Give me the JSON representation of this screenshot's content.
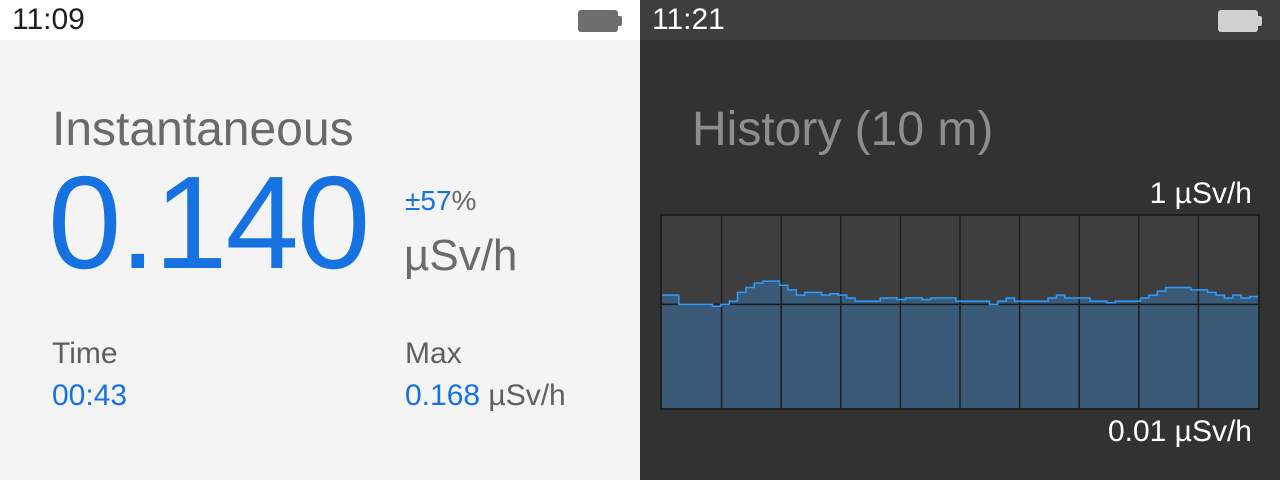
{
  "left_screen": {
    "status": {
      "time": "11:09",
      "battery_icon": "battery-icon"
    },
    "title": "Instantaneous",
    "value": "0.140",
    "uncertainty": "±57",
    "uncertainty_unit": "%",
    "unit": "µSv/h",
    "time_label": "Time",
    "time_value": "00:43",
    "max_label": "Max",
    "max_value": "0.168",
    "max_unit": "µSv/h"
  },
  "right_screen": {
    "status": {
      "time": "11:21",
      "battery_icon": "battery-icon"
    },
    "title": "History (10 m)",
    "scale_max": "1 µSv/h",
    "scale_min": "0.01 µSv/h"
  },
  "chart_data": {
    "type": "area",
    "title": "History (10 m)",
    "y_scale": "log",
    "ylim": [
      0.01,
      1
    ],
    "ylabel_top": "1 µSv/h",
    "ylabel_bottom": "0.01 µSv/h",
    "x_divisions": 10,
    "reference_line": 0.12,
    "values": [
      0.15,
      0.15,
      0.12,
      0.12,
      0.12,
      0.12,
      0.115,
      0.12,
      0.13,
      0.16,
      0.18,
      0.2,
      0.21,
      0.21,
      0.19,
      0.17,
      0.15,
      0.16,
      0.16,
      0.15,
      0.155,
      0.15,
      0.14,
      0.13,
      0.13,
      0.13,
      0.14,
      0.14,
      0.135,
      0.14,
      0.14,
      0.135,
      0.14,
      0.14,
      0.14,
      0.13,
      0.13,
      0.13,
      0.13,
      0.12,
      0.13,
      0.14,
      0.13,
      0.13,
      0.13,
      0.13,
      0.14,
      0.15,
      0.14,
      0.14,
      0.14,
      0.13,
      0.13,
      0.125,
      0.13,
      0.13,
      0.13,
      0.14,
      0.15,
      0.165,
      0.18,
      0.18,
      0.18,
      0.17,
      0.17,
      0.16,
      0.15,
      0.14,
      0.15,
      0.14,
      0.145
    ],
    "colors": {
      "line": "#2b9dff",
      "fill": "#3a5a78",
      "background": "#3e3e3e",
      "grid": "#1e1e1e"
    }
  }
}
